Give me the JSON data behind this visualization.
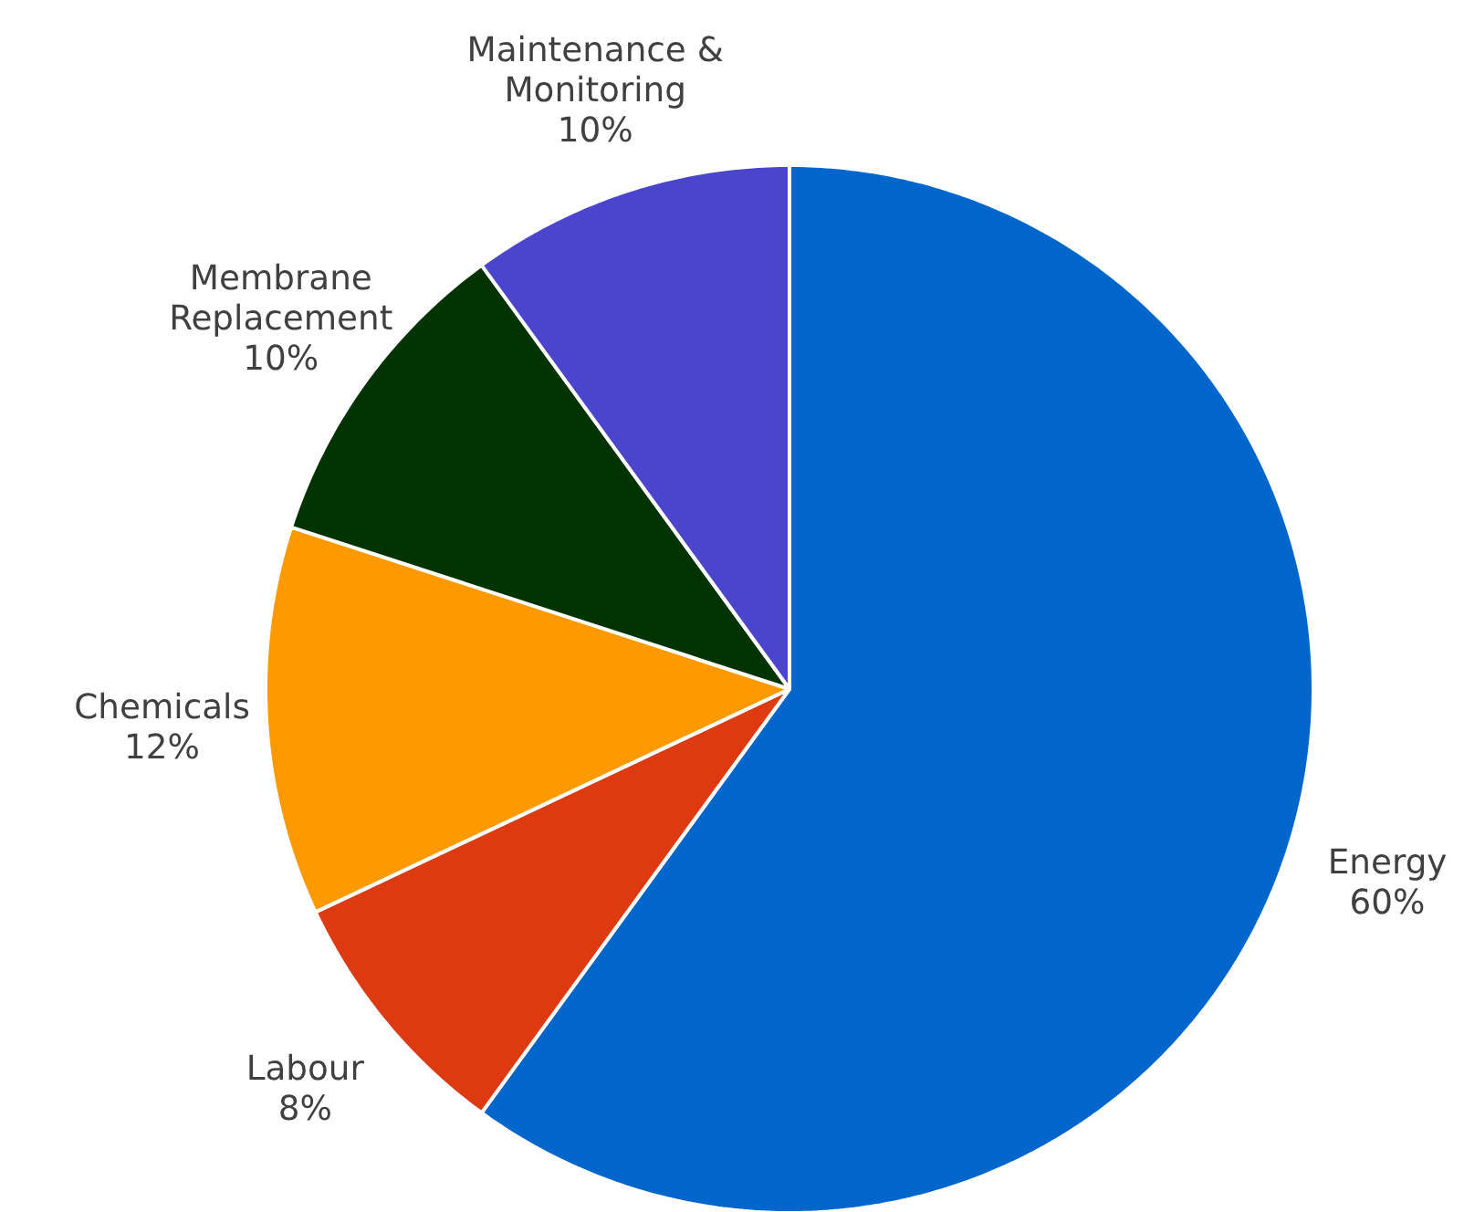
{
  "chart_data": {
    "type": "pie",
    "categories": [
      "Energy",
      "Labour",
      "Chemicals",
      "Membrane Replacement",
      "Maintenance & Monitoring"
    ],
    "values": [
      60,
      8,
      12,
      10,
      10
    ],
    "colors": [
      "#0066cc",
      "#dd3a12",
      "#ff9900",
      "#003300",
      "#4b44cc"
    ],
    "value_labels": [
      "60%",
      "8%",
      "12%",
      "10%",
      "10%"
    ]
  }
}
